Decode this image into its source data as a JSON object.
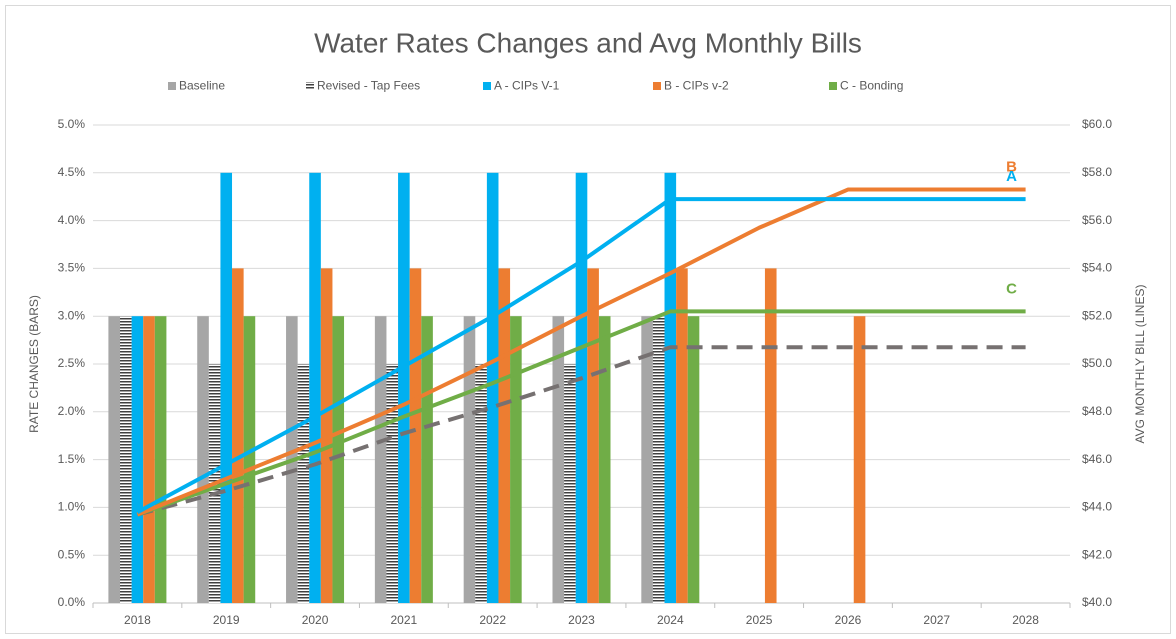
{
  "chart_data": {
    "type": "bar",
    "title": "Water Rates Changes and Avg Monthly Bills",
    "y_label": "RATE CHANGES (BARS)",
    "y2_label": "AVG MONTHLY BILL (LINES)",
    "categories": [
      "2018",
      "2019",
      "2020",
      "2021",
      "2022",
      "2023",
      "2024",
      "2025",
      "2026",
      "2027",
      "2028"
    ],
    "series": [
      {
        "name": "Baseline",
        "color": "#a6a6a6",
        "values": [
          3.0,
          3.0,
          3.0,
          3.0,
          3.0,
          3.0,
          3.0,
          0,
          0,
          0,
          0
        ]
      },
      {
        "name": "Revised - Tap Fees",
        "color": "#404040",
        "pattern": "striped",
        "values": [
          3.0,
          2.5,
          2.5,
          2.5,
          2.5,
          2.5,
          3.0,
          0,
          0,
          0,
          0
        ]
      },
      {
        "name": "A - CIPs V-1",
        "color": "#00b0f0",
        "values": [
          3.0,
          4.5,
          4.5,
          4.5,
          4.5,
          4.5,
          4.5,
          0,
          0,
          0,
          0
        ]
      },
      {
        "name": "B - CIPs v-2",
        "color": "#ed7d31",
        "values": [
          3.0,
          3.5,
          3.5,
          3.5,
          3.5,
          3.5,
          3.5,
          3.5,
          3.0,
          0,
          0
        ]
      },
      {
        "name": "C - Bonding",
        "color": "#70ad47",
        "values": [
          3.0,
          3.0,
          3.0,
          3.0,
          3.0,
          3.0,
          3.0,
          0,
          0,
          0,
          0
        ]
      }
    ],
    "lines": [
      {
        "color": "#767171",
        "dashed": true,
        "axis": "y2",
        "values": [
          43.7,
          44.7,
          45.8,
          47.1,
          48.2,
          49.4,
          50.7,
          50.7,
          50.7,
          50.7,
          50.7
        ]
      },
      {
        "label": "C",
        "color": "#70ad47",
        "axis": "y2",
        "values": [
          43.7,
          45.0,
          46.3,
          47.8,
          49.2,
          50.7,
          52.2,
          52.2,
          52.2,
          52.2,
          52.2
        ]
      },
      {
        "label": "B",
        "color": "#ed7d31",
        "axis": "y2",
        "values": [
          43.7,
          45.2,
          46.7,
          48.3,
          50.1,
          52.0,
          53.8,
          55.7,
          57.3,
          57.3,
          57.3
        ]
      },
      {
        "label": "A",
        "color": "#00b0f0",
        "axis": "y2",
        "values": [
          43.8,
          45.8,
          47.8,
          49.9,
          52.0,
          54.3,
          56.9,
          56.9,
          56.9,
          56.9,
          56.9
        ]
      }
    ],
    "ylim": [
      0,
      5
    ],
    "yticks": [
      {
        "value": 0,
        "label": "0.0%"
      },
      {
        "value": 0.5,
        "label": "0.5%"
      },
      {
        "value": 1,
        "label": "1.0%"
      },
      {
        "value": 1.5,
        "label": "1.5%"
      },
      {
        "value": 2,
        "label": "2.0%"
      },
      {
        "value": 2.5,
        "label": "2.5%"
      },
      {
        "value": 3,
        "label": "3.0%"
      },
      {
        "value": 3.5,
        "label": "3.5%"
      },
      {
        "value": 4,
        "label": "4.0%"
      },
      {
        "value": 4.5,
        "label": "4.5%"
      },
      {
        "value": 5,
        "label": "5.0%"
      }
    ],
    "y2lim": [
      40,
      60
    ],
    "y2ticks": [
      {
        "value": 40,
        "label": "$40.0"
      },
      {
        "value": 42,
        "label": "$42.0"
      },
      {
        "value": 44,
        "label": "$44.0"
      },
      {
        "value": 46,
        "label": "$46.0"
      },
      {
        "value": 48,
        "label": "$48.0"
      },
      {
        "value": 50,
        "label": "$50.0"
      },
      {
        "value": 52,
        "label": "$52.0"
      },
      {
        "value": 54,
        "label": "$54.0"
      },
      {
        "value": 56,
        "label": "$56.0"
      },
      {
        "value": 58,
        "label": "$58.0"
      },
      {
        "value": 60,
        "label": "$60.0"
      }
    ],
    "grid": true,
    "legend": "top"
  }
}
